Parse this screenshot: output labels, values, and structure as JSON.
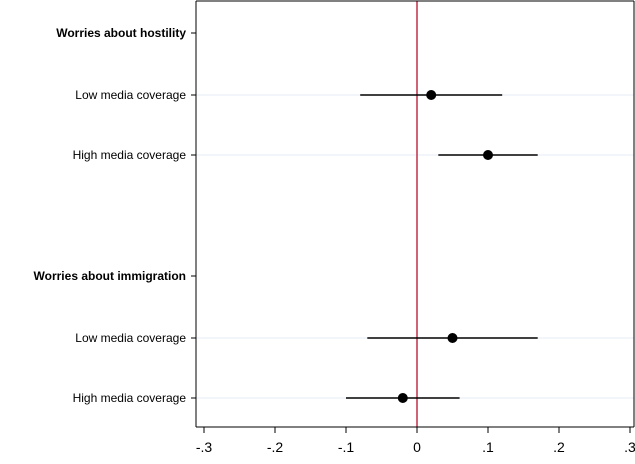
{
  "chart_data": {
    "type": "scatter",
    "subtype": "coefficient-plot-with-confidence-intervals",
    "xlim": [
      -0.31,
      0.31
    ],
    "xticks": [
      -0.3,
      -0.2,
      -0.1,
      0,
      0.1,
      0.2,
      0.3
    ],
    "xtick_labels": [
      "-.3",
      "-.2",
      "-.1",
      "0",
      ".1",
      ".2",
      ".3"
    ],
    "reference_line": {
      "x": 0,
      "color": "#c0304a"
    },
    "grid": "horizontal-at-rows",
    "colors": {
      "marker": "#000000",
      "ci": "#000000",
      "grid": "#e6eef4",
      "axis": "#000000"
    },
    "groups": [
      {
        "label": "Worries about hostility",
        "rows": [
          {
            "label": "Low media coverage",
            "estimate": 0.02,
            "ci_low": -0.08,
            "ci_high": 0.12
          },
          {
            "label": "High media coverage",
            "estimate": 0.1,
            "ci_low": 0.03,
            "ci_high": 0.17
          }
        ]
      },
      {
        "label": "Worries about immigration",
        "rows": [
          {
            "label": "Low media coverage",
            "estimate": 0.05,
            "ci_low": -0.07,
            "ci_high": 0.17
          },
          {
            "label": "High media coverage",
            "estimate": -0.02,
            "ci_low": -0.1,
            "ci_high": 0.06
          }
        ]
      }
    ]
  }
}
